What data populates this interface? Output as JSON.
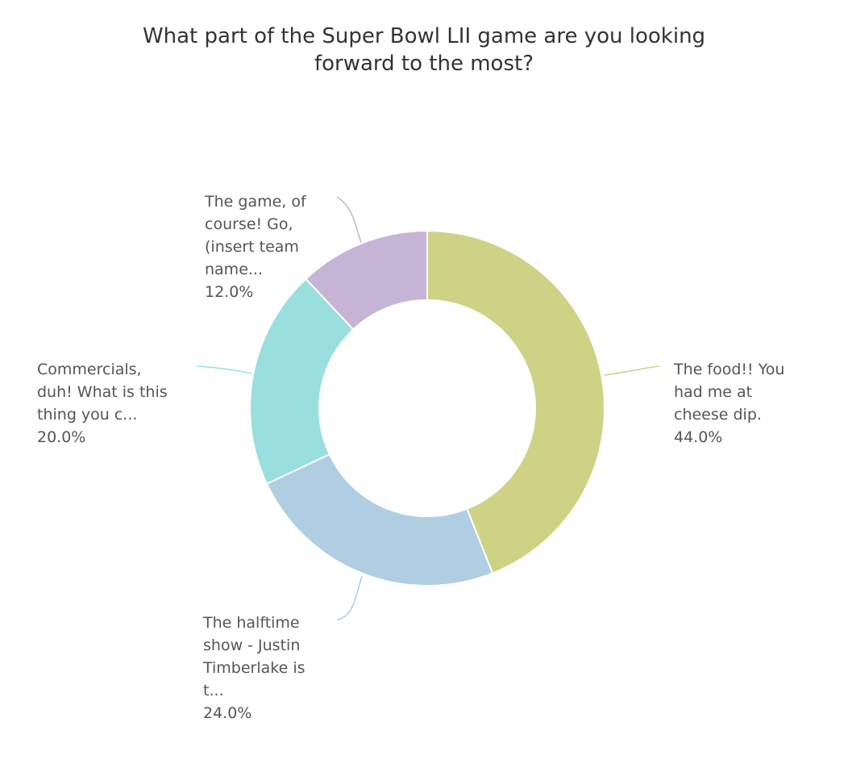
{
  "chart_data": {
    "type": "pie",
    "title_lines": [
      "What part of the Super Bowl LII game are you looking",
      "forward to the most?"
    ],
    "slices": [
      {
        "label_lines": [
          "The food!! You",
          "had me at",
          "cheese dip."
        ],
        "value": 44.0,
        "value_text": "44.0%",
        "color": "#cdd285"
      },
      {
        "label_lines": [
          "The halftime",
          "show - Justin",
          "Timberlake is",
          "t..."
        ],
        "value": 24.0,
        "value_text": "24.0%",
        "color": "#b0cee1"
      },
      {
        "label_lines": [
          "Commercials,",
          "duh! What is this",
          "thing you c..."
        ],
        "value": 20.0,
        "value_text": "20.0%",
        "color": "#98dfdd"
      },
      {
        "label_lines": [
          "The game, of",
          "course! Go,",
          "(insert team",
          "name..."
        ],
        "value": 12.0,
        "value_text": "12.0%",
        "color": "#c6b4d6"
      }
    ],
    "donut": true,
    "start_angle_deg": 0,
    "direction": "clockwise"
  }
}
